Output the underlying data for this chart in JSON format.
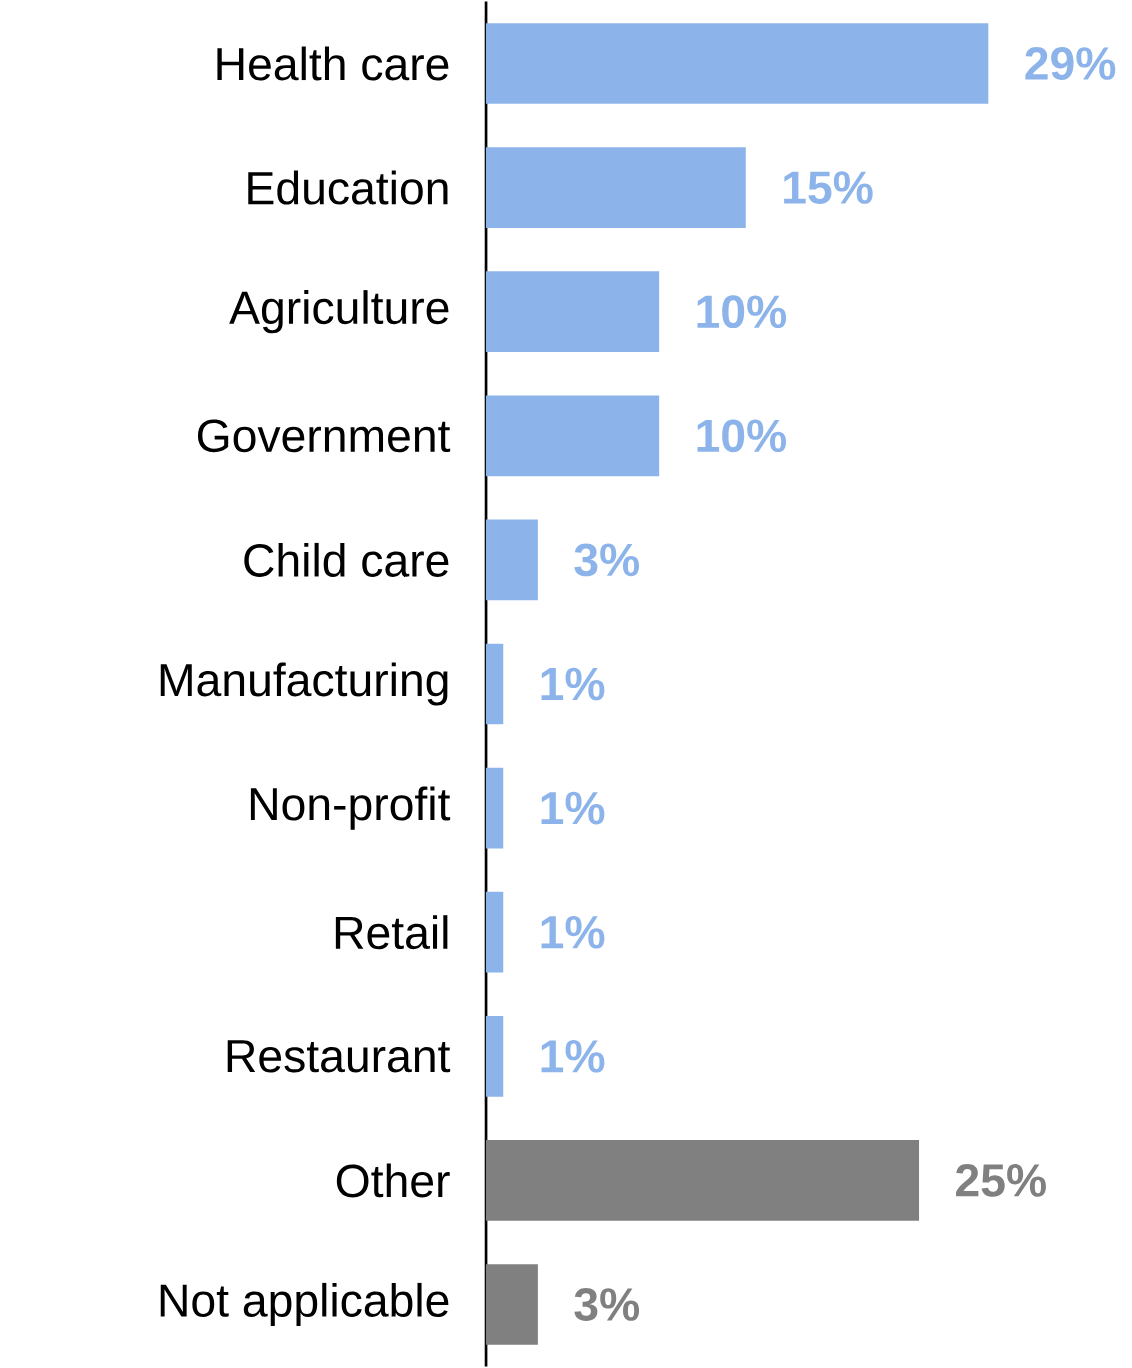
{
  "chart_data": {
    "type": "bar",
    "orientation": "horizontal",
    "categories": [
      "Health care",
      "Education",
      "Agriculture",
      "Government",
      "Child care",
      "Manufacturing",
      "Non-profit",
      "Retail",
      "Restaurant",
      "Other",
      "Not applicable"
    ],
    "values": [
      29,
      15,
      10,
      10,
      3,
      1,
      1,
      1,
      1,
      25,
      3
    ],
    "value_labels": [
      "29%",
      "15%",
      "10%",
      "10%",
      "3%",
      "1%",
      "1%",
      "1%",
      "1%",
      "25%",
      "3%"
    ],
    "colors": [
      "#8db4ea",
      "#8db4ea",
      "#8db4ea",
      "#8db4ea",
      "#8db4ea",
      "#8db4ea",
      "#8db4ea",
      "#8db4ea",
      "#8db4ea",
      "#808080",
      "#808080"
    ]
  }
}
